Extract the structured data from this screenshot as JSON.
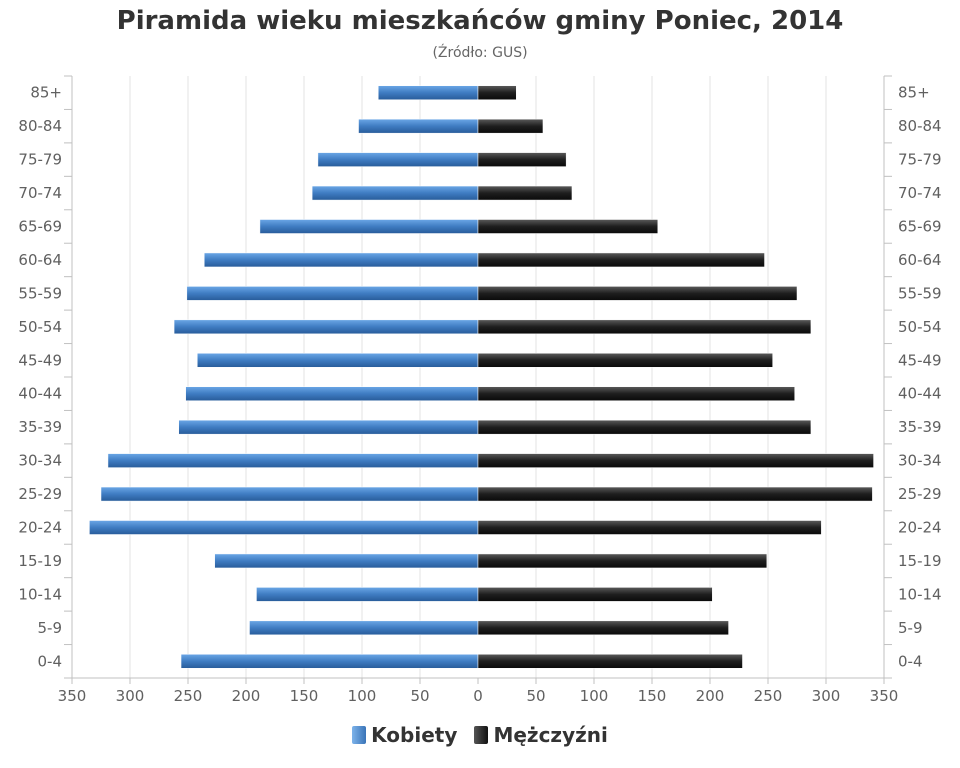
{
  "chart_data": {
    "type": "bar",
    "orientation": "horizontal",
    "subtype": "population-pyramid",
    "title": "Piramida wieku mieszkańców gminy Poniec, 2014",
    "subtitle": "(Źródło: GUS)",
    "categories": [
      "85+",
      "80-84",
      "75-79",
      "70-74",
      "65-69",
      "60-64",
      "55-59",
      "50-54",
      "45-49",
      "40-44",
      "35-39",
      "30-34",
      "25-29",
      "20-24",
      "15-19",
      "10-14",
      "5-9",
      "0-4"
    ],
    "series": [
      {
        "name": "Kobiety",
        "side": "left",
        "color": "#4a86c8",
        "values": [
          86,
          103,
          138,
          143,
          188,
          236,
          251,
          262,
          242,
          252,
          258,
          319,
          325,
          335,
          227,
          191,
          197,
          256
        ]
      },
      {
        "name": "Mężczyźni",
        "side": "right",
        "color": "#222222",
        "values": [
          33,
          56,
          76,
          81,
          155,
          247,
          275,
          287,
          254,
          273,
          287,
          341,
          340,
          296,
          249,
          202,
          216,
          228
        ]
      }
    ],
    "xlim": [
      -350,
      350
    ],
    "x_ticks": [
      -350,
      -300,
      -250,
      -200,
      -150,
      -100,
      -50,
      0,
      50,
      100,
      150,
      200,
      250,
      300,
      350
    ],
    "x_tick_labels": [
      "350",
      "300",
      "250",
      "200",
      "150",
      "100",
      "50",
      "0",
      "50",
      "100",
      "150",
      "200",
      "250",
      "300",
      "350"
    ],
    "grid": true,
    "legend_position": "bottom-center"
  }
}
